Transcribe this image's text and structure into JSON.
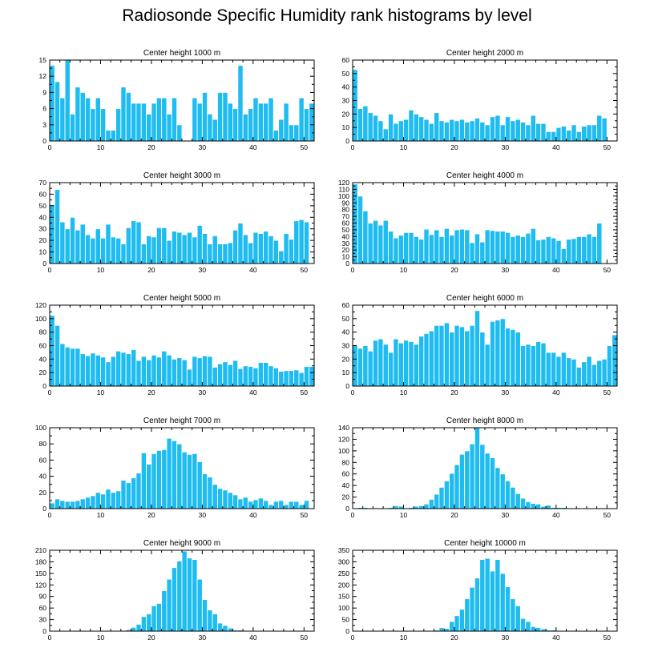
{
  "title": "Radiosonde Specific Humidity rank histograms by level",
  "colors": {
    "bar": "#1ebcf0",
    "bar_edge": "#ffffff",
    "axis": "#000000"
  },
  "chart_data": [
    {
      "type": "bar",
      "title": "Center height 1000 m",
      "x": [
        0,
        1,
        2,
        3,
        4,
        5,
        6,
        7,
        8,
        9,
        10,
        11,
        12,
        13,
        14,
        15,
        16,
        17,
        18,
        19,
        20,
        21,
        22,
        23,
        24,
        25,
        26,
        27,
        28,
        29,
        30,
        31,
        32,
        33,
        34,
        35,
        36,
        37,
        38,
        39,
        40,
        41,
        42,
        43,
        44,
        45,
        46,
        47,
        48,
        49,
        50,
        51
      ],
      "values": [
        14,
        11,
        8,
        15,
        5,
        10,
        9,
        8,
        6,
        8,
        6,
        2,
        2,
        6,
        10,
        9,
        7,
        7,
        7,
        5,
        7,
        8,
        8,
        5,
        8,
        3,
        0,
        0,
        8,
        7,
        9,
        5,
        4,
        9,
        9,
        7,
        6,
        14,
        5,
        6,
        8,
        7,
        7,
        8,
        2,
        4,
        7,
        3,
        3,
        8,
        6,
        7
      ],
      "xlim": [
        0,
        52
      ],
      "ylim": [
        0,
        15
      ],
      "xticks": [
        0,
        10,
        20,
        30,
        40,
        50
      ],
      "yticks": [
        0,
        3,
        6,
        9,
        12,
        15
      ]
    },
    {
      "type": "bar",
      "title": "Center height 2000 m",
      "x": [
        0,
        1,
        2,
        3,
        4,
        5,
        6,
        7,
        8,
        9,
        10,
        11,
        12,
        13,
        14,
        15,
        16,
        17,
        18,
        19,
        20,
        21,
        22,
        23,
        24,
        25,
        26,
        27,
        28,
        29,
        30,
        31,
        32,
        33,
        34,
        35,
        36,
        37,
        38,
        39,
        40,
        41,
        42,
        43,
        44,
        45,
        46,
        47,
        48,
        49,
        50,
        51
      ],
      "values": [
        53,
        24,
        26,
        21,
        19,
        15,
        9,
        20,
        13,
        15,
        16,
        23,
        20,
        18,
        16,
        13,
        21,
        15,
        14,
        16,
        15,
        16,
        14,
        15,
        17,
        14,
        12,
        18,
        19,
        12,
        18,
        15,
        16,
        14,
        12,
        19,
        13,
        13,
        7,
        7,
        10,
        11,
        8,
        12,
        7,
        11,
        12,
        12,
        19,
        17,
        0,
        0
      ],
      "xlim": [
        0,
        52
      ],
      "ylim": [
        0,
        60
      ],
      "xticks": [
        0,
        10,
        20,
        30,
        40,
        50
      ],
      "yticks": [
        0,
        10,
        20,
        30,
        40,
        50,
        60
      ]
    },
    {
      "type": "bar",
      "title": "Center height 3000 m",
      "x": [
        0,
        1,
        2,
        3,
        4,
        5,
        6,
        7,
        8,
        9,
        10,
        11,
        12,
        13,
        14,
        15,
        16,
        17,
        18,
        19,
        20,
        21,
        22,
        23,
        24,
        25,
        26,
        27,
        28,
        29,
        30,
        31,
        32,
        33,
        34,
        35,
        36,
        37,
        38,
        39,
        40,
        41,
        42,
        43,
        44,
        45,
        46,
        47,
        48,
        49,
        50,
        51
      ],
      "values": [
        51,
        64,
        36,
        30,
        40,
        29,
        34,
        25,
        22,
        30,
        22,
        34,
        23,
        22,
        17,
        31,
        37,
        36,
        17,
        24,
        23,
        31,
        31,
        20,
        28,
        27,
        25,
        27,
        23,
        33,
        26,
        17,
        24,
        17,
        17,
        18,
        29,
        35,
        25,
        18,
        27,
        26,
        28,
        24,
        20,
        11,
        26,
        21,
        37,
        38,
        36,
        0
      ],
      "xlim": [
        0,
        52
      ],
      "ylim": [
        0,
        70
      ],
      "xticks": [
        0,
        10,
        20,
        30,
        40,
        50
      ],
      "yticks": [
        0,
        10,
        20,
        30,
        40,
        50,
        60,
        70
      ]
    },
    {
      "type": "bar",
      "title": "Center height 4000 m",
      "x": [
        0,
        1,
        2,
        3,
        4,
        5,
        6,
        7,
        8,
        9,
        10,
        11,
        12,
        13,
        14,
        15,
        16,
        17,
        18,
        19,
        20,
        21,
        22,
        23,
        24,
        25,
        26,
        27,
        28,
        29,
        30,
        31,
        32,
        33,
        34,
        35,
        36,
        37,
        38,
        39,
        40,
        41,
        42,
        43,
        44,
        45,
        46,
        47,
        48,
        49,
        50,
        51
      ],
      "values": [
        118,
        100,
        78,
        60,
        64,
        57,
        64,
        48,
        38,
        42,
        46,
        46,
        40,
        36,
        51,
        43,
        50,
        40,
        52,
        42,
        50,
        51,
        50,
        31,
        44,
        32,
        50,
        49,
        48,
        48,
        46,
        40,
        42,
        40,
        45,
        52,
        35,
        36,
        40,
        38,
        34,
        22,
        36,
        37,
        40,
        40,
        44,
        40,
        60,
        0,
        0,
        0
      ],
      "xlim": [
        0,
        52
      ],
      "ylim": [
        0,
        120
      ],
      "xticks": [
        0,
        10,
        20,
        30,
        40,
        50
      ],
      "yticks": [
        0,
        10,
        20,
        30,
        40,
        50,
        60,
        70,
        80,
        90,
        100,
        110,
        120
      ]
    },
    {
      "type": "bar",
      "title": "Center height 5000 m",
      "x": [
        0,
        1,
        2,
        3,
        4,
        5,
        6,
        7,
        8,
        9,
        10,
        11,
        12,
        13,
        14,
        15,
        16,
        17,
        18,
        19,
        20,
        21,
        22,
        23,
        24,
        25,
        26,
        27,
        28,
        29,
        30,
        31,
        32,
        33,
        34,
        35,
        36,
        37,
        38,
        39,
        40,
        41,
        42,
        43,
        44,
        45,
        46,
        47,
        48,
        49,
        50,
        51
      ],
      "values": [
        105,
        90,
        63,
        58,
        56,
        56,
        48,
        45,
        49,
        46,
        43,
        36,
        44,
        52,
        50,
        48,
        54,
        38,
        44,
        39,
        46,
        43,
        52,
        46,
        40,
        42,
        39,
        25,
        44,
        42,
        45,
        44,
        28,
        33,
        36,
        32,
        38,
        26,
        30,
        29,
        27,
        35,
        35,
        30,
        27,
        22,
        23,
        23,
        24,
        20,
        29,
        29
      ],
      "xlim": [
        0,
        52
      ],
      "ylim": [
        0,
        120
      ],
      "xticks": [
        0,
        10,
        20,
        30,
        40,
        50
      ],
      "yticks": [
        0,
        20,
        40,
        60,
        80,
        100,
        120
      ]
    },
    {
      "type": "bar",
      "title": "Center height 6000 m",
      "x": [
        0,
        1,
        2,
        3,
        4,
        5,
        6,
        7,
        8,
        9,
        10,
        11,
        12,
        13,
        14,
        15,
        16,
        17,
        18,
        19,
        20,
        21,
        22,
        23,
        24,
        25,
        26,
        27,
        28,
        29,
        30,
        31,
        32,
        33,
        34,
        35,
        36,
        37,
        38,
        39,
        40,
        41,
        42,
        43,
        44,
        45,
        46,
        47,
        48,
        49,
        50,
        51
      ],
      "values": [
        30,
        28,
        30,
        26,
        34,
        35,
        31,
        25,
        35,
        32,
        34,
        33,
        31,
        37,
        39,
        41,
        45,
        45,
        47,
        40,
        45,
        44,
        41,
        45,
        56,
        40,
        31,
        48,
        49,
        50,
        43,
        42,
        40,
        30,
        31,
        30,
        33,
        32,
        25,
        25,
        22,
        25,
        21,
        20,
        14,
        18,
        22,
        16,
        19,
        20,
        30,
        38
      ],
      "xlim": [
        0,
        52
      ],
      "ylim": [
        0,
        60
      ],
      "xticks": [
        0,
        10,
        20,
        30,
        40,
        50
      ],
      "yticks": [
        0,
        10,
        20,
        30,
        40,
        50,
        60
      ]
    },
    {
      "type": "bar",
      "title": "Center height 7000 m",
      "x": [
        0,
        1,
        2,
        3,
        4,
        5,
        6,
        7,
        8,
        9,
        10,
        11,
        12,
        13,
        14,
        15,
        16,
        17,
        18,
        19,
        20,
        21,
        22,
        23,
        24,
        25,
        26,
        27,
        28,
        29,
        30,
        31,
        32,
        33,
        34,
        35,
        36,
        37,
        38,
        39,
        40,
        41,
        42,
        43,
        44,
        45,
        46,
        47,
        48,
        49,
        50,
        51
      ],
      "values": [
        7,
        12,
        10,
        9,
        9,
        10,
        12,
        14,
        16,
        20,
        18,
        24,
        20,
        22,
        35,
        32,
        38,
        44,
        69,
        55,
        68,
        72,
        73,
        87,
        84,
        80,
        70,
        67,
        68,
        58,
        43,
        39,
        30,
        25,
        23,
        20,
        17,
        12,
        14,
        9,
        11,
        13,
        10,
        5,
        9,
        10,
        5,
        9,
        9,
        5,
        10,
        0
      ],
      "xlim": [
        0,
        52
      ],
      "ylim": [
        0,
        100
      ],
      "xticks": [
        0,
        10,
        20,
        30,
        40,
        50
      ],
      "yticks": [
        0,
        20,
        40,
        60,
        80,
        100
      ]
    },
    {
      "type": "bar",
      "title": "Center height 8000 m",
      "x": [
        0,
        1,
        2,
        3,
        4,
        5,
        6,
        7,
        8,
        9,
        10,
        11,
        12,
        13,
        14,
        15,
        16,
        17,
        18,
        19,
        20,
        21,
        22,
        23,
        24,
        25,
        26,
        27,
        28,
        29,
        30,
        31,
        32,
        33,
        34,
        35,
        36,
        37,
        38,
        39,
        40,
        41,
        42,
        43,
        44,
        45,
        46,
        47,
        48,
        49,
        50,
        51
      ],
      "values": [
        1,
        2,
        2,
        0,
        1,
        0,
        0,
        2,
        5,
        4,
        0,
        2,
        4,
        5,
        8,
        16,
        25,
        37,
        48,
        61,
        76,
        94,
        100,
        112,
        140,
        111,
        96,
        88,
        71,
        60,
        48,
        37,
        26,
        18,
        12,
        9,
        8,
        4,
        6,
        2,
        2,
        2,
        0,
        0,
        1,
        0,
        0,
        0,
        0,
        0,
        0,
        0
      ],
      "xlim": [
        0,
        52
      ],
      "ylim": [
        0,
        140
      ],
      "xticks": [
        0,
        10,
        20,
        30,
        40,
        50
      ],
      "yticks": [
        0,
        20,
        40,
        60,
        80,
        100,
        120,
        140
      ]
    },
    {
      "type": "bar",
      "title": "Center height 9000 m",
      "x": [
        0,
        1,
        2,
        3,
        4,
        5,
        6,
        7,
        8,
        9,
        10,
        11,
        12,
        13,
        14,
        15,
        16,
        17,
        18,
        19,
        20,
        21,
        22,
        23,
        24,
        25,
        26,
        27,
        28,
        29,
        30,
        31,
        32,
        33,
        34,
        35,
        36,
        37,
        38,
        39,
        40,
        41,
        42,
        43,
        44,
        45,
        46,
        47,
        48,
        49,
        50,
        51
      ],
      "values": [
        0,
        0,
        0,
        0,
        0,
        0,
        0,
        0,
        0,
        0,
        2,
        0,
        0,
        0,
        2,
        4,
        10,
        18,
        38,
        45,
        66,
        72,
        105,
        135,
        165,
        182,
        208,
        190,
        186,
        135,
        82,
        55,
        45,
        21,
        15,
        8,
        3,
        3,
        2,
        1,
        0,
        0,
        0,
        0,
        0,
        0,
        0,
        0,
        0,
        0,
        0,
        0
      ],
      "xlim": [
        0,
        52
      ],
      "ylim": [
        0,
        210
      ],
      "xticks": [
        0,
        10,
        20,
        30,
        40,
        50
      ],
      "yticks": [
        0,
        30,
        60,
        90,
        120,
        150,
        180,
        210
      ]
    },
    {
      "type": "bar",
      "title": "Center height 10000 m",
      "x": [
        0,
        1,
        2,
        3,
        4,
        5,
        6,
        7,
        8,
        9,
        10,
        11,
        12,
        13,
        14,
        15,
        16,
        17,
        18,
        19,
        20,
        21,
        22,
        23,
        24,
        25,
        26,
        27,
        28,
        29,
        30,
        31,
        32,
        33,
        34,
        35,
        36,
        37,
        38,
        39,
        40,
        41,
        42,
        43,
        44,
        45,
        46,
        47,
        48,
        49,
        50,
        51
      ],
      "values": [
        0,
        0,
        0,
        0,
        0,
        0,
        0,
        0,
        0,
        0,
        0,
        0,
        0,
        0,
        0,
        2,
        5,
        15,
        12,
        42,
        67,
        95,
        140,
        190,
        230,
        310,
        315,
        260,
        310,
        250,
        192,
        140,
        110,
        55,
        42,
        20,
        15,
        10,
        5,
        5,
        2,
        3,
        2,
        2,
        0,
        0,
        0,
        0,
        0,
        0,
        0,
        0
      ],
      "xlim": [
        0,
        52
      ],
      "ylim": [
        0,
        350
      ],
      "xticks": [
        0,
        10,
        20,
        30,
        40,
        50
      ],
      "yticks": [
        0,
        50,
        100,
        150,
        200,
        250,
        300,
        350
      ]
    }
  ]
}
